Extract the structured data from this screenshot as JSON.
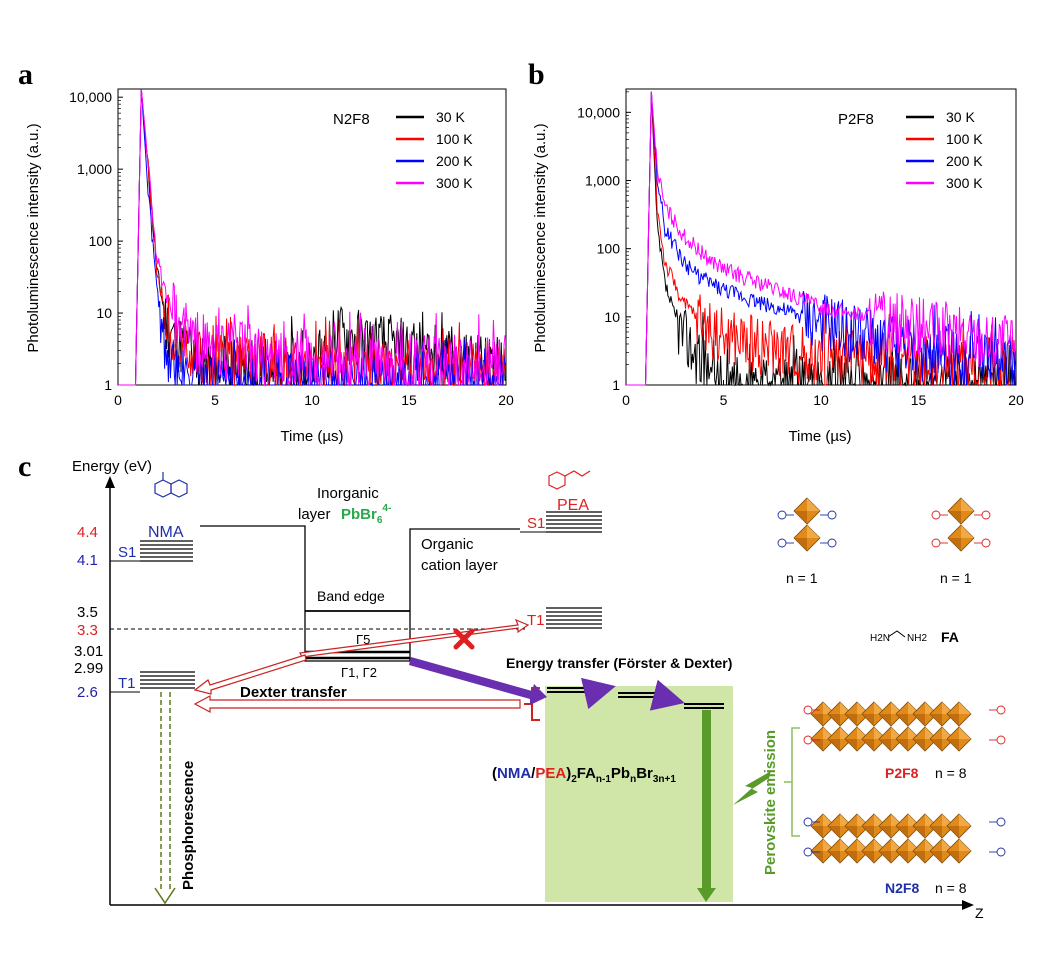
{
  "panel_labels": {
    "a": "a",
    "b": "b",
    "c": "c"
  },
  "chart_data": [
    {
      "type": "line",
      "panel": "a",
      "title": "N2F8",
      "xlabel": "Time (µs)",
      "ylabel": "Photoluminescence intensity (a.u.)",
      "xlim": [
        0,
        20
      ],
      "ylim": [
        1,
        13000
      ],
      "yscale": "log",
      "xticks": [
        "0",
        "5",
        "10",
        "15",
        "20"
      ],
      "yticks": [
        "1",
        "10",
        "100",
        "1,000",
        "10,000"
      ],
      "legend_position": "top-right",
      "grid": false,
      "series": [
        {
          "name": "30 K",
          "color": "#000000",
          "tau": 0.32,
          "floor": 1.6,
          "x": [
            0.9,
            1.2,
            1.5,
            2.0,
            2.5,
            3.0,
            4.0,
            5.0,
            10.0,
            11.3,
            20.0
          ],
          "y": [
            1,
            13000,
            1500,
            40,
            7,
            4,
            2.5,
            1.8,
            1.6,
            5,
            1.5
          ]
        },
        {
          "name": "100 K",
          "color": "#ff0000",
          "tau": 0.34,
          "floor": 1.6,
          "x": [
            0.9,
            1.2,
            1.5,
            2.0,
            2.5,
            3.0,
            4.0,
            5.0,
            10.0,
            20.0
          ],
          "y": [
            1,
            13000,
            1500,
            40,
            8,
            4,
            2.5,
            1.8,
            1.6,
            1.5
          ]
        },
        {
          "name": "200 K",
          "color": "#0000ff",
          "tau": 0.22,
          "floor": 1.0,
          "x": [
            0.9,
            1.2,
            1.5,
            2.0,
            2.5,
            3.0,
            3.5,
            4.0
          ],
          "y": [
            1,
            13000,
            800,
            20,
            3,
            1.5,
            1,
            1
          ]
        },
        {
          "name": "300 K",
          "color": "#ff00ff",
          "tau": 0.4,
          "floor": 2.0,
          "x": [
            0.9,
            1.2,
            1.5,
            2.0,
            2.5,
            3.0,
            4.0,
            5.0,
            10.0,
            20.0
          ],
          "y": [
            1,
            13000,
            1800,
            60,
            15,
            8,
            4,
            3,
            2,
            1.8
          ]
        }
      ]
    },
    {
      "type": "line",
      "panel": "b",
      "title": "P2F8",
      "xlabel": "Time (µs)",
      "ylabel": "Photoluminescence intensity (a.u.)",
      "xlim": [
        0,
        20
      ],
      "ylim": [
        1,
        22000
      ],
      "yscale": "log",
      "xticks": [
        "0",
        "5",
        "10",
        "15",
        "20"
      ],
      "yticks": [
        "1",
        "10",
        "100",
        "1,000",
        "10,000"
      ],
      "legend_position": "top-right",
      "grid": false,
      "series": [
        {
          "name": "30 K",
          "color": "#000000",
          "tau": 0.3,
          "floor": 1.0,
          "x": [
            1.0,
            1.3,
            1.6,
            2.0,
            2.5,
            3.0,
            4.0,
            5.0
          ],
          "y": [
            1,
            20000,
            200,
            30,
            10,
            5,
            2,
            1
          ]
        },
        {
          "name": "100 K",
          "color": "#ff0000",
          "tau": 0.3,
          "floor": 2.0,
          "x": [
            1.0,
            1.3,
            1.6,
            2.0,
            3.0,
            4.0,
            5.0,
            10.0,
            15.0,
            20.0
          ],
          "y": [
            1,
            20000,
            400,
            60,
            15,
            8,
            5,
            2.5,
            2,
            2
          ]
        },
        {
          "name": "200 K",
          "color": "#0000ff",
          "tau": 0.3,
          "floor": 2.5,
          "x": [
            1.0,
            1.3,
            1.6,
            2.0,
            3.0,
            4.0,
            5.0,
            10.0,
            15.0,
            20.0
          ],
          "y": [
            1,
            20000,
            1000,
            200,
            60,
            35,
            25,
            8,
            3,
            2
          ]
        },
        {
          "name": "300 K",
          "color": "#ff00ff",
          "tau": 0.3,
          "floor": 3.0,
          "x": [
            1.0,
            1.3,
            1.6,
            2.0,
            3.0,
            4.0,
            5.0,
            10.0,
            15.0,
            20.0
          ],
          "y": [
            1,
            20000,
            1500,
            400,
            150,
            80,
            50,
            14,
            7,
            4
          ]
        }
      ]
    }
  ],
  "diagram": {
    "energy_axis_label": "Energy (eV)",
    "z_label": "Z",
    "levels": [
      {
        "value": "4.4",
        "color": "#d22"
      },
      {
        "value": "4.1",
        "color": "#22a"
      },
      {
        "value": "3.5",
        "color": "#000"
      },
      {
        "value": "3.3",
        "color": "#d22"
      },
      {
        "value": "3.01",
        "color": "#000"
      },
      {
        "value": "2.99",
        "color": "#000"
      },
      {
        "value": "2.6",
        "color": "#22a"
      }
    ],
    "nma_label": "NMA",
    "nma_s1": "S1",
    "nma_t1": "T1",
    "pea_label": "PEA",
    "pea_s1": "S1",
    "pea_t1": "T1",
    "inorganic_label_1": "Inorganic",
    "inorganic_label_2": "layer",
    "pbbr_base": "PbBr",
    "pbbr_sub": "6",
    "pbbr_sup": "4-",
    "organic_label_1": "Organic",
    "organic_label_2": "cation layer",
    "band_edge": "Band edge",
    "gamma5": "Γ5",
    "gamma12": "Γ1, Γ2",
    "dexter_transfer": "Dexter transfer",
    "energy_transfer": "Energy transfer (Förster & Dexter)",
    "phosphorescence": "Phosphorescence",
    "perovskite_emission": "Perovskite emission",
    "formula": {
      "open": "(",
      "nma": "NMA",
      "slash": "/",
      "pea": "PEA",
      "close": ")",
      "sub2": "2",
      "fa": "FA",
      "sub_n1": "n-1",
      "pb": "Pb",
      "sub_n": "n",
      "br": "Br",
      "sub_3n1": "3n+1"
    },
    "structures": {
      "n1_left": "n = 1",
      "n1_right": "n = 1",
      "fa_label": "FA",
      "fa_formula_left": "H2N",
      "fa_formula_right": "NH2",
      "p2f8": "P2F8",
      "n8_top": "n = 8",
      "n2f8": "N2F8",
      "n8_bottom": "n = 8"
    },
    "colors": {
      "nma": "#1f2fa8",
      "pea": "#e02020",
      "pbbr": "#2aa84a",
      "energy_transfer_arrow": "#6a2fb0",
      "perovskite_box": "#cfe6a8",
      "emission": "#5a9a2a",
      "octahedron": "#e08a1a"
    }
  }
}
